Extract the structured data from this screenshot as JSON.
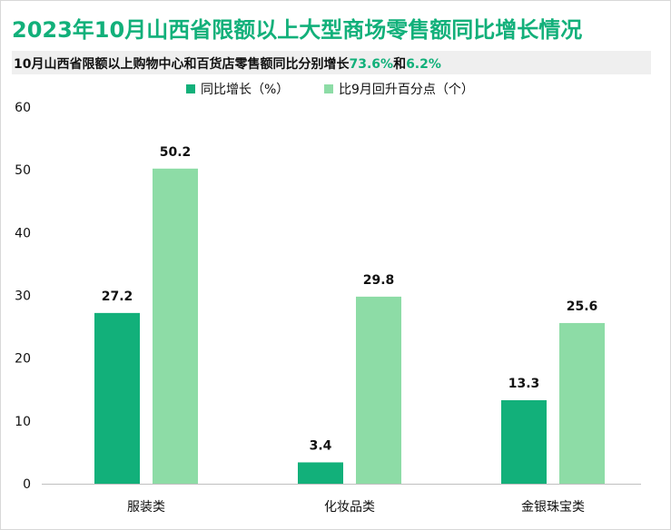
{
  "header": {
    "title": "2023年10月山西省限额以上大型商场零售额同比增长情况",
    "subtitle_prefix": "10月山西省限额以上购物中心和百货店零售额同比分别增长",
    "subtitle_value1": "73.6%",
    "subtitle_mid": "和",
    "subtitle_value2": "6.2%"
  },
  "colors": {
    "series1": "#12b07a",
    "series2": "#8ddca6",
    "title": "#12b07a"
  },
  "chart_data": {
    "type": "bar",
    "categories": [
      "服装类",
      "化妆品类",
      "金银珠宝类"
    ],
    "series": [
      {
        "name": "同比增长（%）",
        "values": [
          27.2,
          3.4,
          13.3
        ]
      },
      {
        "name": "比9月回升百分点（个）",
        "values": [
          50.2,
          29.8,
          25.6
        ]
      }
    ],
    "ylim": [
      0,
      60
    ],
    "yticks": [
      0,
      10,
      20,
      30,
      40,
      50,
      60
    ],
    "grid": false,
    "legend": "top-center",
    "data_labels": true
  }
}
